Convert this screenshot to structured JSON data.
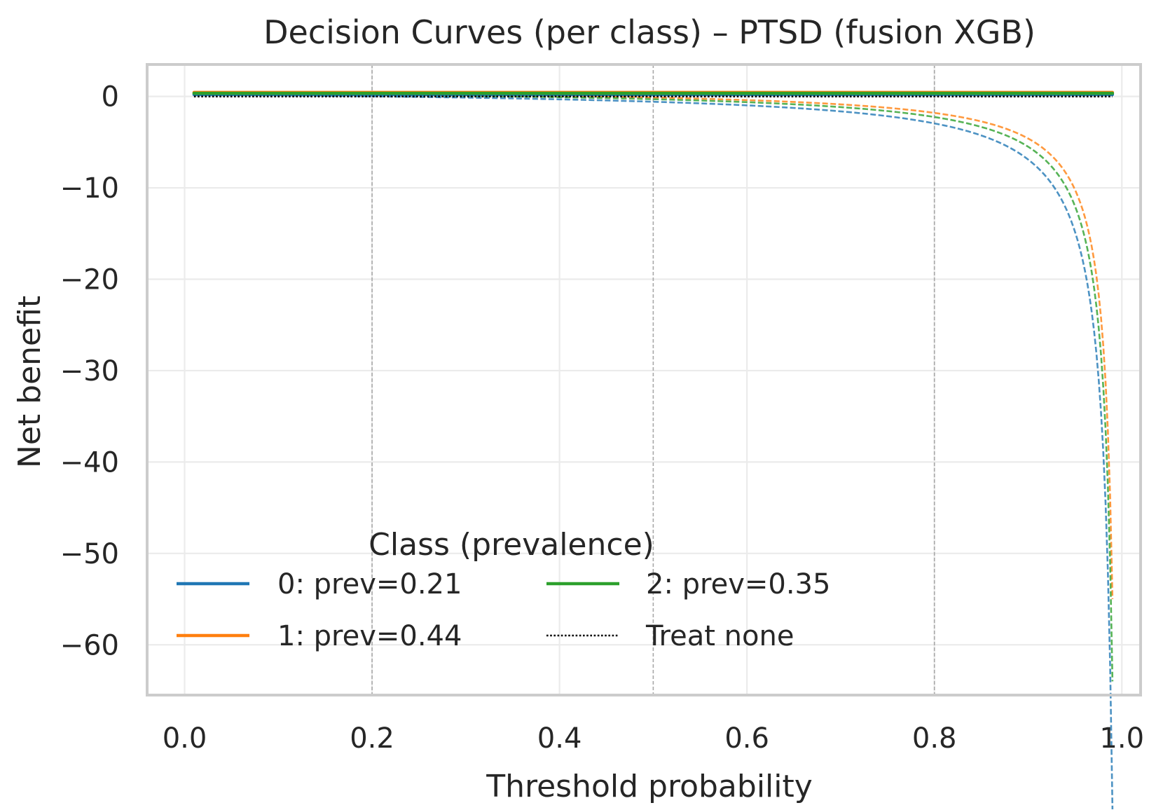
{
  "chart_data": {
    "type": "line",
    "title": "Decision Curves (per class) – PTSD (fusion XGB)",
    "xlabel": "Threshold probability",
    "ylabel": "Net benefit",
    "xlim": [
      -0.04,
      1.02
    ],
    "ylim": [
      -65.5,
      3.5
    ],
    "xticks": [
      0.0,
      0.2,
      0.4,
      0.6,
      0.8,
      1.0
    ],
    "xtick_labels": [
      "0.0",
      "0.2",
      "0.4",
      "0.6",
      "0.8",
      "1.0"
    ],
    "yticks": [
      0,
      -10,
      -20,
      -30,
      -40,
      -50,
      -60
    ],
    "ytick_labels": [
      "0",
      "−10",
      "−20",
      "−30",
      "−40",
      "−50",
      "−60"
    ],
    "grid": true,
    "reference_vlines": [
      0.2,
      0.5,
      0.8
    ],
    "threshold_range": [
      0.01,
      0.99
    ],
    "legend": {
      "title": "Class (prevalence)",
      "placement": "lower-left",
      "entries": [
        {
          "label": "0: prev=0.21",
          "style": "solid",
          "color": "#1f77b4"
        },
        {
          "label": "1: prev=0.44",
          "style": "solid",
          "color": "#ff7f0e"
        },
        {
          "label": "2: prev=0.35",
          "style": "solid",
          "color": "#2ca02c"
        },
        {
          "label": "Treat none",
          "style": "dotted",
          "color": "#000000"
        }
      ]
    },
    "series": [
      {
        "label": "0: prev=0.21",
        "kind": "model",
        "color": "#1f77b4",
        "prevalence": 0.21,
        "value": 0.21
      },
      {
        "label": "1: prev=0.44",
        "kind": "model",
        "color": "#ff7f0e",
        "prevalence": 0.44,
        "value": 0.44
      },
      {
        "label": "2: prev=0.35",
        "kind": "model",
        "color": "#2ca02c",
        "prevalence": 0.35,
        "value": 0.35
      },
      {
        "label": "Treat none",
        "kind": "none",
        "color": "#000000",
        "value": 0
      },
      {
        "kind": "treat_all",
        "color": "#1f77b4",
        "prevalence": 0.21
      },
      {
        "kind": "treat_all",
        "color": "#ff7f0e",
        "prevalence": 0.44
      },
      {
        "kind": "treat_all",
        "color": "#2ca02c",
        "prevalence": 0.35
      }
    ]
  }
}
